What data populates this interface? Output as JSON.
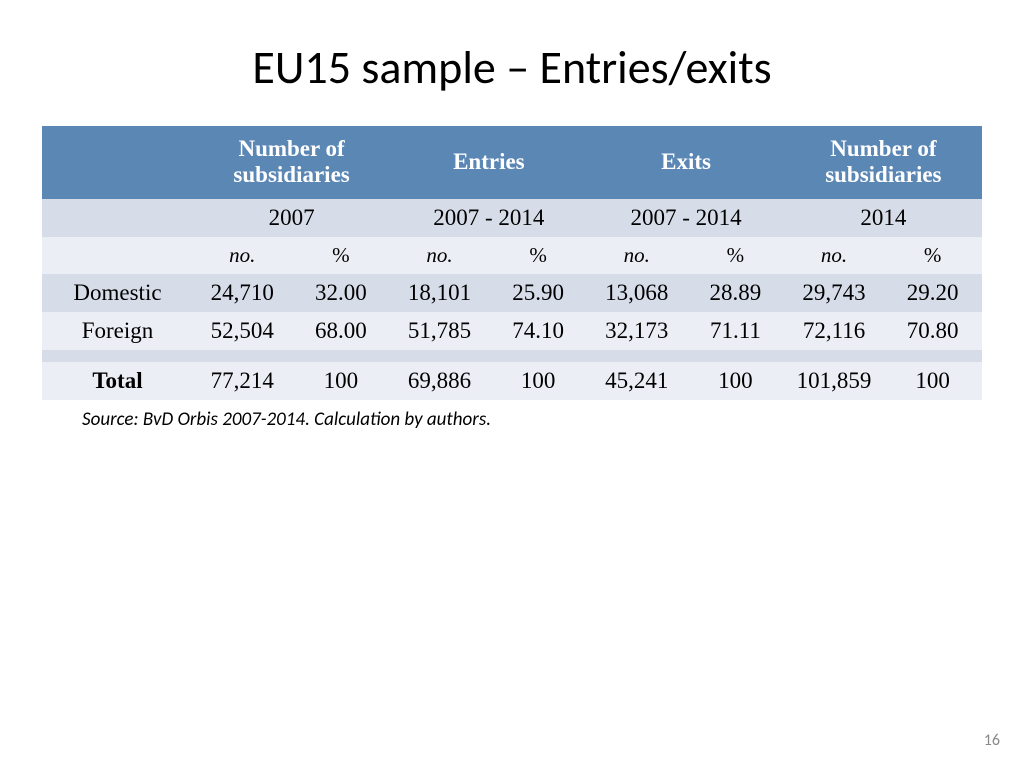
{
  "title": "EU15 sample – Entries/exits",
  "table": {
    "type": "table",
    "background_color": "#ffffff",
    "header_bg": "#5b87b5",
    "header_text_color": "#ffffff",
    "row_alt_bg_a": "#d6dce8",
    "row_alt_bg_b": "#ebeef5",
    "title_fontsize": 46,
    "header_fontsize": 23,
    "body_fontsize": 23,
    "subhdr_fontsize": 21,
    "font_family_header": "Garamond",
    "font_family_body": "Garamond",
    "groups": [
      {
        "label": "Number of subsidiaries",
        "period": "2007"
      },
      {
        "label": "Entries",
        "period": "2007 - 2014"
      },
      {
        "label": "Exits",
        "period": "2007 - 2014"
      },
      {
        "label": "Number of subsidiaries",
        "period": "2014"
      }
    ],
    "subcols": {
      "no": "no.",
      "pct": "%"
    },
    "rows": [
      {
        "label": "Domestic",
        "vals": [
          "24,710",
          "32.00",
          "18,101",
          "25.90",
          "13,068",
          "28.89",
          "29,743",
          "29.20"
        ]
      },
      {
        "label": "Foreign",
        "vals": [
          "52,504",
          "68.00",
          "51,785",
          "74.10",
          "32,173",
          "71.11",
          "72,116",
          "70.80"
        ]
      },
      {
        "label": "",
        "vals": [
          "",
          "",
          "",
          "",
          "",
          "",
          "",
          ""
        ]
      },
      {
        "label": "Total",
        "vals": [
          "77,214",
          "100",
          "69,886",
          "100",
          "45,241",
          "100",
          "101,859",
          "100"
        ],
        "bold": true
      }
    ]
  },
  "source": "Source: BvD Orbis 2007-2014. Calculation by authors.",
  "page_number": "16"
}
